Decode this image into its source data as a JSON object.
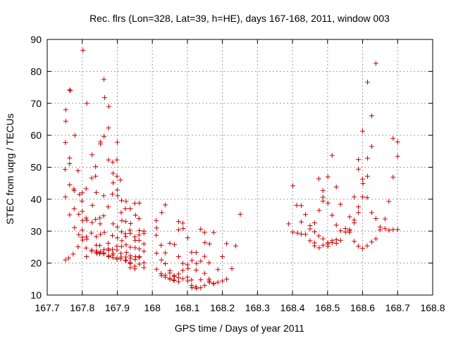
{
  "chart_data": {
    "type": "scatter",
    "title": "Rec. flrs (Lon=328, Lat=39, h=HE), days 167-168, 2011, window 003",
    "xlabel": "GPS time / Days of year 2011",
    "ylabel": "STEC from uqrg / TECUs",
    "xlim": [
      167.7,
      168.8
    ],
    "ylim": [
      10,
      90
    ],
    "xticks": [
      167.7,
      167.8,
      167.9,
      168,
      168.1,
      168.2,
      168.3,
      168.4,
      168.5,
      168.6,
      168.7,
      168.8
    ],
    "xtick_labels": [
      "167.7",
      "167.8",
      "167.9",
      "168",
      "168.1",
      "168.2",
      "168.3",
      "168.4",
      "168.5",
      "168.6",
      "168.7",
      "168.8"
    ],
    "yticks": [
      10,
      20,
      30,
      40,
      50,
      60,
      70,
      80,
      90
    ],
    "ytick_labels": [
      "10",
      "20",
      "30",
      "40",
      "50",
      "60",
      "70",
      "80",
      "90"
    ],
    "grid": true,
    "marker": "+",
    "color": "#cc0000",
    "points": [
      [
        167.753,
        68.0
      ],
      [
        167.753,
        64.4
      ],
      [
        167.752,
        57.7
      ],
      [
        167.751,
        49.3
      ],
      [
        167.752,
        40.7
      ],
      [
        167.752,
        21.0
      ],
      [
        167.761,
        21.6
      ],
      [
        167.764,
        74.2
      ],
      [
        167.766,
        74.0
      ],
      [
        167.764,
        52.9
      ],
      [
        167.764,
        51.1
      ],
      [
        167.764,
        44.5
      ],
      [
        167.764,
        35.1
      ],
      [
        167.779,
        60.0
      ],
      [
        167.776,
        43.2
      ],
      [
        167.777,
        42.7
      ],
      [
        167.777,
        37.0
      ],
      [
        167.778,
        31.1
      ],
      [
        167.774,
        22.8
      ],
      [
        167.788,
        48.9
      ],
      [
        167.792,
        41.5
      ],
      [
        167.79,
        35.3
      ],
      [
        167.79,
        28.9
      ],
      [
        167.788,
        25.1
      ],
      [
        167.802,
        86.6
      ],
      [
        167.8,
        42.0
      ],
      [
        167.799,
        39.4
      ],
      [
        167.8,
        36.2
      ],
      [
        167.801,
        33.3
      ],
      [
        167.8,
        30.3
      ],
      [
        167.8,
        28.1
      ],
      [
        167.801,
        27.2
      ],
      [
        167.813,
        70.0
      ],
      [
        167.811,
        43.3
      ],
      [
        167.811,
        34.1
      ],
      [
        167.813,
        33.4
      ],
      [
        167.812,
        28.2
      ],
      [
        167.813,
        27.5
      ],
      [
        167.811,
        24.7
      ],
      [
        167.812,
        22.0
      ],
      [
        167.828,
        53.9
      ],
      [
        167.827,
        46.6
      ],
      [
        167.829,
        38.1
      ],
      [
        167.828,
        32.7
      ],
      [
        167.826,
        29.4
      ],
      [
        167.827,
        24.1
      ],
      [
        167.827,
        23.7
      ],
      [
        167.838,
        50.2
      ],
      [
        167.838,
        47.2
      ],
      [
        167.84,
        42.1
      ],
      [
        167.838,
        33.7
      ],
      [
        167.84,
        28.3
      ],
      [
        167.84,
        25.6
      ],
      [
        167.84,
        23.8
      ],
      [
        167.841,
        23.3
      ],
      [
        167.842,
        23.0
      ],
      [
        167.852,
        57.9
      ],
      [
        167.852,
        57.3
      ],
      [
        167.85,
        34.1
      ],
      [
        167.851,
        32.3
      ],
      [
        167.852,
        29.0
      ],
      [
        167.85,
        25.5
      ],
      [
        167.852,
        23.6
      ],
      [
        167.85,
        23.0
      ],
      [
        167.85,
        22.9
      ],
      [
        167.862,
        77.5
      ],
      [
        167.864,
        71.8
      ],
      [
        167.862,
        59.7
      ],
      [
        167.861,
        41.1
      ],
      [
        167.861,
        34.8
      ],
      [
        167.863,
        29.6
      ],
      [
        167.862,
        24.2
      ],
      [
        167.861,
        23.2
      ],
      [
        167.862,
        22.9
      ],
      [
        167.876,
        69.0
      ],
      [
        167.875,
        62.3
      ],
      [
        167.875,
        52.3
      ],
      [
        167.874,
        37.6
      ],
      [
        167.874,
        26.2
      ],
      [
        167.874,
        24.5
      ],
      [
        167.875,
        24.0
      ],
      [
        167.875,
        22.3
      ],
      [
        167.876,
        22.0
      ],
      [
        167.887,
        51.6
      ],
      [
        167.888,
        48.1
      ],
      [
        167.888,
        45.1
      ],
      [
        167.886,
        41.6
      ],
      [
        167.888,
        32.3
      ],
      [
        167.886,
        28.6
      ],
      [
        167.886,
        24.3
      ],
      [
        167.888,
        23.0
      ],
      [
        167.887,
        22.5
      ],
      [
        167.888,
        21.7
      ],
      [
        167.9,
        57.8
      ],
      [
        167.899,
        52.3
      ],
      [
        167.899,
        47.2
      ],
      [
        167.9,
        42.9
      ],
      [
        167.901,
        41.1
      ],
      [
        167.9,
        31.3
      ],
      [
        167.9,
        27.9
      ],
      [
        167.899,
        25.3
      ],
      [
        167.899,
        24.1
      ],
      [
        167.899,
        21.6
      ],
      [
        167.899,
        21.2
      ],
      [
        167.909,
        46.0
      ],
      [
        167.912,
        39.6
      ],
      [
        167.911,
        35.8
      ],
      [
        167.913,
        33.3
      ],
      [
        167.912,
        29.8
      ],
      [
        167.913,
        27.0
      ],
      [
        167.912,
        25.2
      ],
      [
        167.91,
        23.0
      ],
      [
        167.911,
        21.9
      ],
      [
        167.91,
        21.3
      ],
      [
        167.925,
        39.3
      ],
      [
        167.923,
        37.0
      ],
      [
        167.924,
        33.0
      ],
      [
        167.923,
        29.2
      ],
      [
        167.924,
        28.3
      ],
      [
        167.925,
        25.7
      ],
      [
        167.926,
        23.3
      ],
      [
        167.924,
        21.9
      ],
      [
        167.925,
        20.9
      ],
      [
        167.923,
        20.8
      ],
      [
        167.937,
        37.0
      ],
      [
        167.938,
        32.4
      ],
      [
        167.936,
        30.3
      ],
      [
        167.937,
        29.3
      ],
      [
        167.937,
        25.0
      ],
      [
        167.937,
        22.3
      ],
      [
        167.938,
        21.5
      ],
      [
        167.936,
        20.2
      ],
      [
        167.937,
        19.8
      ],
      [
        167.937,
        18.6
      ],
      [
        167.95,
        38.7
      ],
      [
        167.952,
        35.0
      ],
      [
        167.95,
        28.2
      ],
      [
        167.951,
        27.1
      ],
      [
        167.951,
        24.8
      ],
      [
        167.952,
        22.0
      ],
      [
        167.951,
        21.1
      ],
      [
        167.95,
        19.0
      ],
      [
        167.95,
        18.2
      ],
      [
        167.963,
        38.8
      ],
      [
        167.962,
        33.9
      ],
      [
        167.963,
        30.2
      ],
      [
        167.962,
        28.8
      ],
      [
        167.962,
        27.1
      ],
      [
        167.963,
        24.4
      ],
      [
        167.963,
        22.0
      ],
      [
        167.962,
        21.7
      ],
      [
        167.963,
        19.7
      ],
      [
        167.976,
        30.0
      ],
      [
        167.976,
        29.3
      ],
      [
        167.976,
        26.0
      ],
      [
        167.976,
        23.7
      ],
      [
        167.976,
        20.1
      ],
      [
        167.976,
        18.6
      ],
      [
        168.011,
        33.3
      ],
      [
        168.012,
        31.0
      ],
      [
        168.011,
        28.7
      ],
      [
        168.012,
        23.1
      ],
      [
        168.012,
        18.1
      ],
      [
        168.027,
        35.8
      ],
      [
        168.025,
        25.6
      ],
      [
        168.026,
        21.0
      ],
      [
        168.025,
        16.7
      ],
      [
        168.026,
        16.1
      ],
      [
        168.037,
        38.2
      ],
      [
        168.037,
        23.2
      ],
      [
        168.037,
        19.8
      ],
      [
        168.037,
        16.2
      ],
      [
        168.037,
        15.6
      ],
      [
        168.05,
        26.2
      ],
      [
        168.05,
        17.6
      ],
      [
        168.05,
        16.9
      ],
      [
        168.05,
        15.3
      ],
      [
        168.05,
        14.9
      ],
      [
        168.063,
        25.8
      ],
      [
        168.062,
        16.1
      ],
      [
        168.063,
        15.8
      ],
      [
        168.061,
        14.7
      ],
      [
        168.062,
        14.5
      ],
      [
        168.075,
        33.0
      ],
      [
        168.075,
        30.4
      ],
      [
        168.075,
        22.0
      ],
      [
        168.075,
        16.6
      ],
      [
        168.075,
        15.4
      ],
      [
        168.075,
        14.2
      ],
      [
        168.087,
        32.5
      ],
      [
        168.088,
        30.8
      ],
      [
        168.087,
        19.9
      ],
      [
        168.087,
        17.7
      ],
      [
        168.087,
        15.1
      ],
      [
        168.101,
        27.9
      ],
      [
        168.1,
        19.5
      ],
      [
        168.102,
        18.3
      ],
      [
        168.1,
        15.6
      ],
      [
        168.101,
        14.4
      ],
      [
        168.112,
        23.4
      ],
      [
        168.113,
        20.8
      ],
      [
        168.112,
        14.7
      ],
      [
        168.112,
        13.0
      ],
      [
        168.113,
        12.3
      ],
      [
        168.125,
        23.3
      ],
      [
        168.126,
        19.9
      ],
      [
        168.125,
        17.8
      ],
      [
        168.124,
        12.6
      ],
      [
        168.126,
        12.1
      ],
      [
        168.138,
        30.6
      ],
      [
        168.138,
        20.6
      ],
      [
        168.138,
        14.8
      ],
      [
        168.138,
        12.3
      ],
      [
        168.149,
        29.6
      ],
      [
        168.15,
        26.4
      ],
      [
        168.149,
        22.1
      ],
      [
        168.149,
        16.8
      ],
      [
        168.149,
        13.0
      ],
      [
        168.163,
        26.0
      ],
      [
        168.162,
        20.1
      ],
      [
        168.162,
        15.0
      ],
      [
        168.162,
        14.4
      ],
      [
        168.163,
        14.0
      ],
      [
        168.175,
        29.6
      ],
      [
        168.175,
        13.7
      ],
      [
        168.175,
        13.5
      ],
      [
        168.187,
        18.0
      ],
      [
        168.187,
        14.0
      ],
      [
        168.2,
        22.0
      ],
      [
        168.2,
        14.4
      ],
      [
        168.212,
        26.1
      ],
      [
        168.212,
        15.0
      ],
      [
        168.227,
        18.3
      ],
      [
        168.238,
        25.4
      ],
      [
        168.251,
        35.3
      ],
      [
        168.389,
        32.3
      ],
      [
        168.401,
        44.2
      ],
      [
        168.401,
        29.7
      ],
      [
        168.412,
        38.1
      ],
      [
        168.414,
        29.4
      ],
      [
        168.425,
        38.0
      ],
      [
        168.425,
        32.9
      ],
      [
        168.425,
        29.1
      ],
      [
        168.437,
        35.2
      ],
      [
        168.437,
        29.0
      ],
      [
        168.45,
        31.7
      ],
      [
        168.45,
        30.7
      ],
      [
        168.45,
        27.0
      ],
      [
        168.463,
        32.6
      ],
      [
        168.463,
        29.8
      ],
      [
        168.463,
        26.3
      ],
      [
        168.463,
        25.4
      ],
      [
        168.475,
        46.4
      ],
      [
        168.476,
        36.5
      ],
      [
        168.475,
        28.5
      ],
      [
        168.476,
        24.8
      ],
      [
        168.487,
        42.7
      ],
      [
        168.487,
        40.6
      ],
      [
        168.487,
        39.4
      ],
      [
        168.487,
        27.6
      ],
      [
        168.487,
        25.6
      ],
      [
        168.501,
        47.0
      ],
      [
        168.501,
        38.8
      ],
      [
        168.501,
        26.4
      ],
      [
        168.501,
        26.0
      ],
      [
        168.501,
        25.3
      ],
      [
        168.513,
        53.7
      ],
      [
        168.513,
        35.0
      ],
      [
        168.513,
        27.0
      ],
      [
        168.513,
        26.4
      ],
      [
        168.525,
        43.8
      ],
      [
        168.525,
        31.9
      ],
      [
        168.525,
        27.3
      ],
      [
        168.525,
        26.2
      ],
      [
        168.537,
        38.4
      ],
      [
        168.537,
        30.1
      ],
      [
        168.537,
        27.1
      ],
      [
        168.551,
        30.8
      ],
      [
        168.551,
        29.7
      ],
      [
        168.563,
        34.5
      ],
      [
        168.563,
        30.5
      ],
      [
        168.563,
        30.1
      ],
      [
        168.563,
        29.6
      ],
      [
        168.576,
        40.7
      ],
      [
        168.576,
        33.5
      ],
      [
        168.576,
        32.6
      ],
      [
        168.576,
        26.8
      ],
      [
        168.588,
        52.4
      ],
      [
        168.588,
        49.4
      ],
      [
        168.588,
        37.6
      ],
      [
        168.588,
        35.8
      ],
      [
        168.588,
        25.3
      ],
      [
        168.6,
        61.3
      ],
      [
        168.6,
        46.3
      ],
      [
        168.601,
        44.9
      ],
      [
        168.6,
        40.7
      ],
      [
        168.6,
        24.6
      ],
      [
        168.614,
        76.6
      ],
      [
        168.614,
        52.8
      ],
      [
        168.614,
        47.2
      ],
      [
        168.613,
        40.5
      ],
      [
        168.613,
        25.4
      ],
      [
        168.626,
        66.1
      ],
      [
        168.626,
        56.5
      ],
      [
        168.626,
        35.8
      ],
      [
        168.626,
        26.6
      ],
      [
        168.638,
        82.5
      ],
      [
        168.638,
        33.9
      ],
      [
        168.638,
        27.6
      ],
      [
        168.65,
        31.3
      ],
      [
        168.65,
        30.4
      ],
      [
        168.664,
        33.8
      ],
      [
        168.664,
        30.8
      ],
      [
        168.675,
        39.3
      ],
      [
        168.675,
        30.3
      ],
      [
        168.687,
        59.0
      ],
      [
        168.687,
        46.9
      ],
      [
        168.687,
        30.5
      ],
      [
        168.7,
        57.9
      ],
      [
        168.7,
        53.4
      ],
      [
        168.7,
        30.5
      ]
    ]
  }
}
